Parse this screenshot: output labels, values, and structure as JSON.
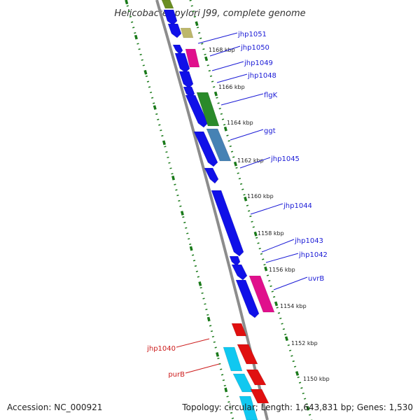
{
  "title": "Helicobacter pylori J99, complete genome",
  "footer": {
    "accession": "Accession: NC_000921",
    "summary": "Topology: circular; Length: 1,643,831 bp; Genes: 1,530"
  },
  "colors": {
    "backbone": "#8c8c8c",
    "ruler": "#1a7a1a",
    "forward_labels": "#1a1ad6",
    "reverse_labels": "#cc1a1a",
    "cds_forward": "#1010e8",
    "cds_reverse": "#e01010",
    "cyan_feature": "#10c8f0",
    "magenta_feature": "#e0108c",
    "green_feature": "#2a8a2a",
    "steelblue_feature": "#4682b4",
    "khaki_feature": "#bdb76b",
    "olive_feature": "#6b8e23"
  },
  "ticks": [
    "1168 kbp",
    "1166 kbp",
    "1164 kbp",
    "1162 kbp",
    "1160 kbp",
    "1158 kbp",
    "1156 kbp",
    "1154 kbp",
    "1152 kbp",
    "1150 kbp"
  ],
  "genes": [
    {
      "label": "jhp1051",
      "strand": "forward"
    },
    {
      "label": "jhp1050",
      "strand": "forward"
    },
    {
      "label": "jhp1049",
      "strand": "forward"
    },
    {
      "label": "jhp1048",
      "strand": "forward"
    },
    {
      "label": "flgK",
      "strand": "forward"
    },
    {
      "label": "ggt",
      "strand": "forward"
    },
    {
      "label": "jhp1045",
      "strand": "forward"
    },
    {
      "label": "jhp1044",
      "strand": "forward"
    },
    {
      "label": "jhp1043",
      "strand": "forward"
    },
    {
      "label": "jhp1042",
      "strand": "forward"
    },
    {
      "label": "uvrB",
      "strand": "forward"
    },
    {
      "label": "jhp1040",
      "strand": "reverse"
    },
    {
      "label": "purB",
      "strand": "reverse"
    }
  ]
}
